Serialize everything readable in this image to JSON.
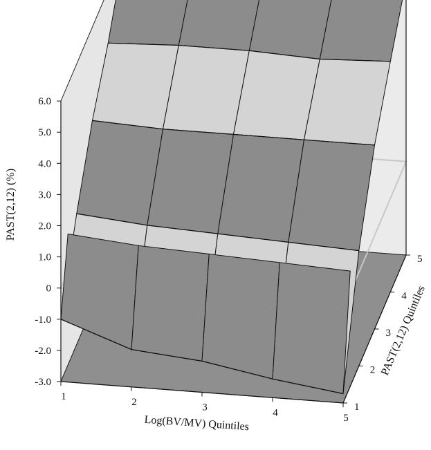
{
  "chart_data": {
    "type": "surface3d",
    "xlabel": "Log(BV/MV) Quintiles",
    "ylabel": "PAST(2,12) Quintiles",
    "zlabel": "PAST(2,12) (%)",
    "x_ticks": [
      "1",
      "2",
      "3",
      "4",
      "5"
    ],
    "y_ticks": [
      "1",
      "2",
      "3",
      "4",
      "5"
    ],
    "z_ticks": [
      "-3.0",
      "-2.0",
      "-1.0",
      "0",
      "1.0",
      "2.0",
      "3.0",
      "4.0",
      "5.0",
      "6.0"
    ],
    "zlim": [
      -3.0,
      6.0
    ],
    "grid": false,
    "surface_rows": [
      {
        "past_quintile": 1,
        "values": [
          -1.0,
          -1.8,
          -2.0,
          -2.4,
          -2.7
        ]
      },
      {
        "past_quintile": 2,
        "values": [
          1.2,
          1.0,
          0.9,
          0.8,
          0.7
        ]
      },
      {
        "past_quintile": 3,
        "values": [
          3.0,
          2.9,
          2.9,
          2.9,
          2.9
        ]
      },
      {
        "past_quintile": 4,
        "values": [
          4.3,
          4.4,
          4.4,
          4.3,
          4.4
        ]
      },
      {
        "past_quintile": 5,
        "values": [
          6.0,
          5.8,
          5.8,
          5.7,
          5.8
        ]
      }
    ],
    "colors": {
      "surface_dark": "#8c8c8c",
      "surface_light": "#d4d4d4",
      "surface_white": "#ffffff",
      "floor": "#8f8f8f",
      "back_wall": "#ebebeb",
      "side_wall": "#e6e6e6",
      "zero_plane": "#c8c8c8"
    }
  }
}
